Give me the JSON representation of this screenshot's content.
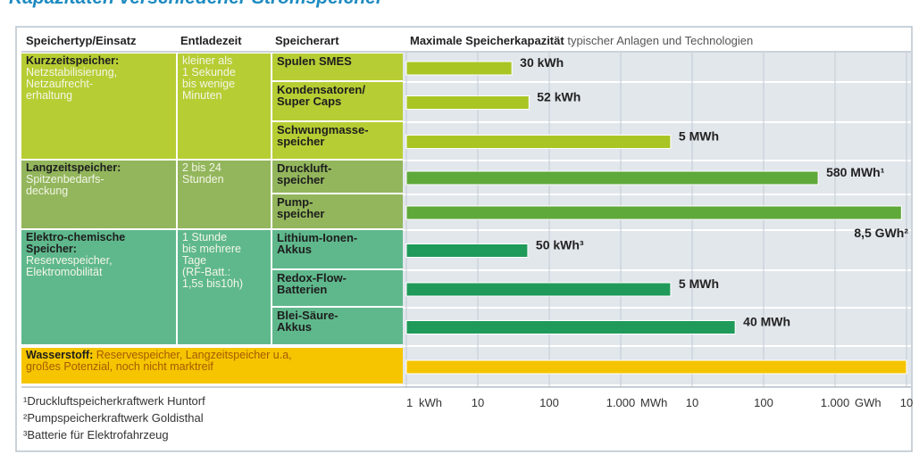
{
  "title": "Kapazitäten verschiedener Stromspeicher",
  "table": {
    "headers": [
      "Speichertyp/Einsatz",
      "Entladezeit",
      "Speicherart"
    ],
    "chart_header_bold": "Maximale Speicherkapazität",
    "chart_header_rest": "typischer Anlagen und Technologien"
  },
  "groups": [
    {
      "name": "Kurzzeitspeicher:",
      "description": "Netzstabilisierung,\nNetzaufrecht-\nerhaltung",
      "discharge": "kleiner als\n1 Sekunde\nbis wenige\nMinuten"
    },
    {
      "name": "Langzeitspeicher:",
      "description": "Spitzenbedarfs-\ndeckung",
      "discharge": "2 bis 24\nStunden"
    },
    {
      "name": "Elektro-chemische\nSpeicher:",
      "description": "Reservespeicher,\nElektromobilität",
      "discharge": "1 Stunde\nbis mehrere\nTage\n(RF-Batt.:\n1,5s bis10h)"
    },
    {
      "name": "Wasserstoff:",
      "description": "Reservespeicher, Langzeitspeicher u.a,\ngroßes Potenzial, noch nicht marktreif"
    }
  ],
  "footnotes": [
    "¹Druckluftspeicherkraftwerk Huntorf",
    "²Pumpspeicherkraftwerk Goldisthal",
    "³Batterie für Elektrofahrzeug"
  ],
  "chart_data": {
    "type": "bar",
    "orientation": "horizontal",
    "log_scale": true,
    "categories": [
      "Spulen SMES",
      "Kondensatoren/\nSuper Caps",
      "Schwungmasse-\nspeicher",
      "Druckluft-\nspeicher",
      "Pump-\nspeicher",
      "Lithium-Ionen-\nAkkus",
      "Redox-Flow-\nBatterien",
      "Blei-Säure-\nAkkus",
      null
    ],
    "values": [
      30,
      52,
      5000,
      580000,
      8500000,
      50,
      5000,
      40000,
      10000000
    ],
    "value_labels": [
      "30 kWh",
      "52 kWh",
      "5 MWh",
      "580 MWh¹",
      "8,5 GWh²",
      "50 kWh³",
      "5 MWh",
      "40 MWh",
      null
    ],
    "colors": [
      "#a9c524",
      "#a9c524",
      "#a9c524",
      "#5fa83a",
      "#5fa83a",
      "#1f9a5a",
      "#1f9a5a",
      "#1f9a5a",
      "#f5c400"
    ],
    "xlim": [
      1,
      10000000
    ],
    "xticks": [
      1,
      10,
      100,
      {
        "value": 1000,
        "label": "1.000"
      },
      {
        "value": 10000,
        "label": "10"
      },
      {
        "value": 100000,
        "label": "100"
      },
      {
        "value": 1000000,
        "label": "1.000"
      },
      {
        "value": 10000000,
        "label": "10"
      }
    ],
    "axis_units": [
      "kWh",
      "MWh",
      "GWh"
    ],
    "grid": true
  }
}
